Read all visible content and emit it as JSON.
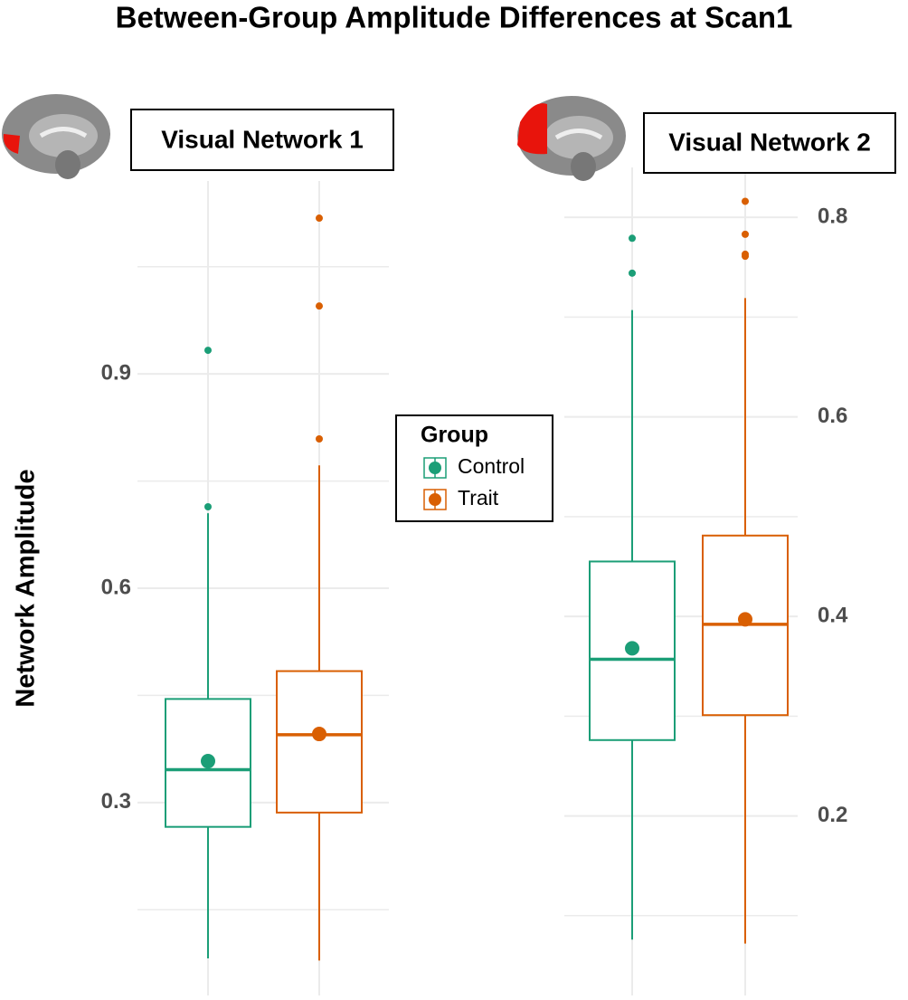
{
  "title": "Between-Group Amplitude Differences at Scan1",
  "y_label": "Network Amplitude",
  "legend_title": "Group",
  "chart_data": [
    {
      "type": "box",
      "title": "Visual Network 1",
      "ylim": [
        0.03,
        1.17
      ],
      "yticks": [
        0.3,
        0.6,
        0.9
      ],
      "minor_yticks": [
        0.15,
        0.45,
        0.75,
        1.05
      ],
      "grid": true,
      "series": [
        {
          "name": "Control",
          "color": "#1b9e77",
          "min": 0.082,
          "q1": 0.266,
          "median": 0.346,
          "q3": 0.445,
          "max": 0.705,
          "mean": 0.358,
          "outliers": [
            0.714,
            0.933
          ]
        },
        {
          "name": "Trait",
          "color": "#d95f02",
          "min": 0.079,
          "q1": 0.286,
          "median": 0.395,
          "q3": 0.484,
          "max": 0.772,
          "mean": 0.396,
          "outliers": [
            0.809,
            0.995,
            1.118
          ]
        }
      ]
    },
    {
      "type": "box",
      "title": "Visual Network 2",
      "ylim": [
        0.02,
        0.85
      ],
      "yticks": [
        0.2,
        0.4,
        0.6,
        0.8
      ],
      "minor_yticks": [
        0.1,
        0.3,
        0.5,
        0.7
      ],
      "grid": true,
      "series": [
        {
          "name": "Control",
          "color": "#1b9e77",
          "min": 0.076,
          "q1": 0.276,
          "median": 0.357,
          "q3": 0.455,
          "max": 0.707,
          "mean": 0.368,
          "outliers": [
            0.744,
            0.779
          ]
        },
        {
          "name": "Trait",
          "color": "#d95f02",
          "min": 0.072,
          "q1": 0.301,
          "median": 0.392,
          "q3": 0.481,
          "max": 0.719,
          "mean": 0.397,
          "outliers": [
            0.761,
            0.763,
            0.783,
            0.816
          ]
        }
      ]
    }
  ]
}
